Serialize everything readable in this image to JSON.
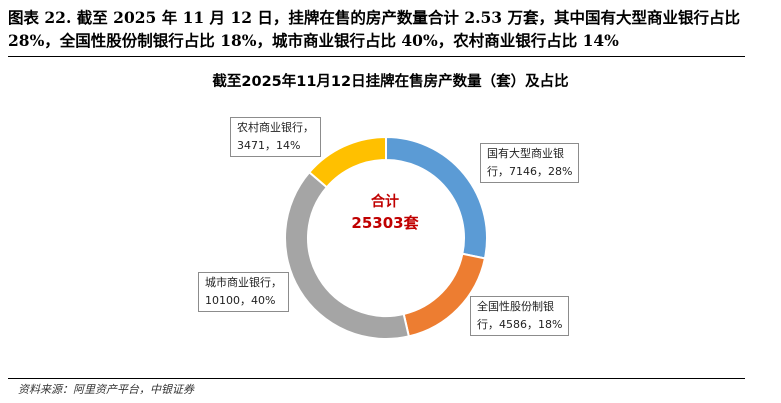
{
  "figure": {
    "title": "图表 22. 截至 2025 年 11 月 12 日，挂牌在售的房产数量合计 2.53 万套，其中国有大型商业银行占比 28%，全国性股份制银行占比 18%，城市商业银行占比 40%，农村商业银行占比 14%",
    "source": "资料来源：阿里资产平台，中银证券"
  },
  "center": {
    "label": "合计",
    "total": "25303套",
    "color": "#c00000"
  },
  "chart_data": {
    "type": "pie",
    "subtype": "donut",
    "title": "截至2025年11月12日挂牌在售房产数量（套）及占比",
    "total": 25303,
    "unit": "套",
    "slices": [
      {
        "name": "国有大型商业银行",
        "value": 7146,
        "percent": 28,
        "color": "#5b9bd5",
        "label_line1": "国有大型商业银",
        "label_line2": "行，7146，28%"
      },
      {
        "name": "全国性股份制银行",
        "value": 4586,
        "percent": 18,
        "color": "#ed7d31",
        "label_line1": "全国性股份制银",
        "label_line2": "行，4586，18%"
      },
      {
        "name": "城市商业银行",
        "value": 10100,
        "percent": 40,
        "color": "#a5a5a5",
        "label_line1": "城市商业银行，",
        "label_line2": "10100，40%"
      },
      {
        "name": "农村商业银行",
        "value": 3471,
        "percent": 14,
        "color": "#ffc000",
        "label_line1": "农村商业银行，",
        "label_line2": "3471，14%"
      }
    ]
  }
}
